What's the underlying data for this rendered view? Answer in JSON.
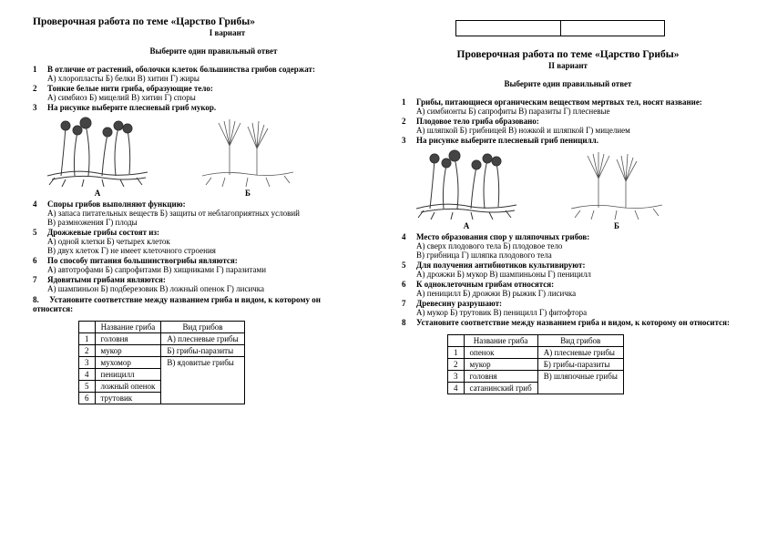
{
  "left": {
    "title": "Проверочная работа по теме «Царство Грибы»",
    "variant": "I вариант",
    "instr": "Выберите один правильный ответ",
    "q1": {
      "n": "1",
      "t": "В отличие от растений, оболочки клеток большинства грибов содержат:",
      "o": "А) хлоропласты  Б) белки  В) хитин  Г) жиры"
    },
    "q2": {
      "n": "2",
      "t": "Тонкие белые нити гриба, образующие тело:",
      "o": "А) симбиоз  Б) мицелий  В) хитин  Г) споры"
    },
    "q3": {
      "n": "3",
      "t": "На рисунке выберите плесневый гриб мукор."
    },
    "labA": "А",
    "labB": "Б",
    "q4": {
      "n": "4",
      "t": "Споры грибов выполняют функцию:",
      "o": "А) запаса питательных веществ  Б) защиты от неблагоприятных условий\nВ) размножения  Г) плоды"
    },
    "q5": {
      "n": "5",
      "t": "Дрожжевые грибы состоят из:",
      "o": "А) одной клетки  Б) четырех клеток\nВ) двух клеток  Г) не имеет клеточного строения"
    },
    "q6": {
      "n": "6",
      "t": "По способу питания большинствогрибы являются:",
      "o": "А) автотрофами  Б) сапрофитами  В) хищниками  Г) паразитами"
    },
    "q7": {
      "n": "7",
      "t": "Ядовитыми грибами являются:",
      "o": "А) шампиньон  Б) подберезовик  В) ложный опенок  Г) лисичка"
    },
    "q8": {
      "n": "8.",
      "t": "Установите соответствие между названием гриба и видом, к которому он относится:"
    },
    "table": {
      "h1": "Название гриба",
      "h2": "Вид грибов",
      "rows": [
        [
          "1",
          "головня",
          "А) плесневые грибы"
        ],
        [
          "2",
          "мукор",
          "Б) грибы-паразиты"
        ],
        [
          "3",
          "мухомор",
          "В) ядовитые грибы"
        ],
        [
          "4",
          "пеницилл",
          ""
        ],
        [
          "5",
          "ложный опенок",
          ""
        ],
        [
          "6",
          "трутовик",
          ""
        ]
      ]
    }
  },
  "right": {
    "title": "Проверочная работа по теме «Царство Грибы»",
    "variant": "II вариант",
    "instr": "Выберите один правильный ответ",
    "q1": {
      "n": "1",
      "t": "Грибы, питающиеся органическим веществом мертвых тел, носят название:",
      "o": "А) симбионты  Б) сапрофиты  В) паразиты  Г) плесневые"
    },
    "q2": {
      "n": "2",
      "t": "Плодовое тело гриба образовано:",
      "o": "А) шляпкой  Б) грибницей  В) ножкой и шляпкой  Г) мицелием"
    },
    "q3": {
      "n": "3",
      "t": "На рисунке выберите плесневый гриб пеницилл."
    },
    "labA": "А",
    "labB": "Б",
    "q4": {
      "n": "4",
      "t": "Место образования спор у шляпочных грибов:",
      "o": "А) сверх плодового тела  Б) плодовое тело\nВ) грибница  Г) шляпка плодового тела"
    },
    "q5": {
      "n": "5",
      "t": "Для получения антибиотиков культивируют:",
      "o": "А) дрожжи  Б) мукор  В) шампиньоны  Г) пеницилл"
    },
    "q6": {
      "n": "6",
      "t": "К одноклеточным грибам относятся:",
      "o": "А) пеницилл  Б) дрожжи  В) рыжик  Г) лисичка"
    },
    "q7": {
      "n": "7",
      "t": "Древесину разрушают:",
      "o": "А) мукор  Б) трутовик  В) пеницилл  Г) фитофтора"
    },
    "q8": {
      "n": "8",
      "t": "Установите соответствие между названием гриба и видом, к которому он относится:"
    },
    "table": {
      "h1": "Название гриба",
      "h2": "Вид грибов",
      "rows": [
        [
          "1",
          "опенок",
          "А) плесневые грибы"
        ],
        [
          "2",
          "мукор",
          "Б) грибы-паразиты"
        ],
        [
          "3",
          "головня",
          "В) шляпочные грибы"
        ],
        [
          "4",
          "сатанинский гриб",
          ""
        ]
      ]
    }
  }
}
